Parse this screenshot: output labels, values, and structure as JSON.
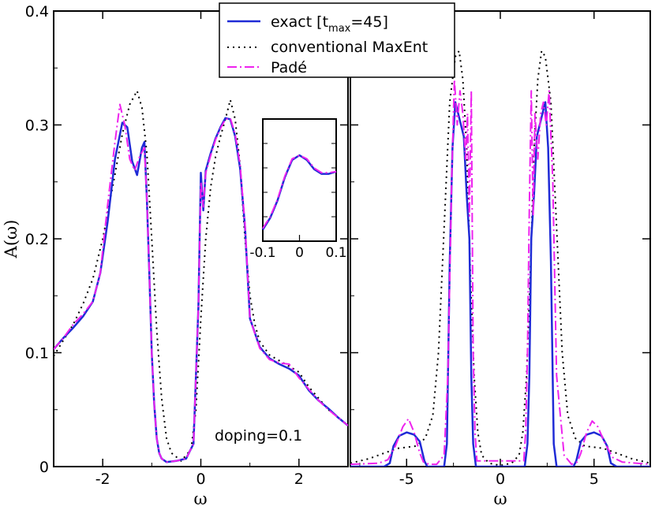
{
  "chart_data": {
    "type": "line",
    "ylabel": "A(ω)",
    "legend": {
      "placement": "top-center",
      "entries": [
        {
          "label_main": "exact [t",
          "label_sub": "max",
          "label_tail": "=45]",
          "style": "solid",
          "color": "#1f2bd6"
        },
        {
          "label": "conventional MaxEnt",
          "style": "dotted",
          "color": "#000000"
        },
        {
          "label": "Padé",
          "style": "dash-dot",
          "color": "#ee22ee"
        }
      ]
    },
    "panels": [
      {
        "name": "left",
        "xlabel": "ω",
        "xlim": [
          -3,
          3
        ],
        "ylim": [
          0,
          0.4
        ],
        "xticks": [
          -2,
          0,
          2
        ],
        "xtick_labels": [
          "-2",
          "0",
          "2"
        ],
        "yticks": [
          0,
          0.1,
          0.2,
          0.3,
          0.4
        ],
        "ytick_labels": [
          "0",
          "0.1",
          "0.2",
          "0.3",
          "0.4"
        ],
        "annotation": "doping=0.1",
        "series": [
          {
            "key": "exact",
            "x": [
              -3,
              -2.8,
              -2.6,
              -2.4,
              -2.2,
              -2.05,
              -1.9,
              -1.75,
              -1.6,
              -1.5,
              -1.4,
              -1.3,
              -1.2,
              -1.15,
              -1.1,
              -1.05,
              -1.0,
              -0.95,
              -0.9,
              -0.85,
              -0.8,
              -0.7,
              -0.5,
              -0.3,
              -0.15,
              -0.05,
              0.0,
              0.05,
              0.1,
              0.2,
              0.3,
              0.4,
              0.5,
              0.6,
              0.7,
              0.8,
              0.9,
              1.0,
              1.2,
              1.4,
              1.6,
              1.8,
              2.0,
              2.2,
              2.4,
              2.6,
              2.8,
              3.0
            ],
            "y": [
              0.103,
              0.113,
              0.122,
              0.132,
              0.145,
              0.17,
              0.215,
              0.27,
              0.302,
              0.298,
              0.268,
              0.256,
              0.28,
              0.285,
              0.235,
              0.17,
              0.1,
              0.055,
              0.025,
              0.012,
              0.007,
              0.004,
              0.005,
              0.007,
              0.02,
              0.14,
              0.258,
              0.225,
              0.26,
              0.275,
              0.288,
              0.298,
              0.306,
              0.305,
              0.29,
              0.262,
              0.21,
              0.13,
              0.105,
              0.095,
              0.09,
              0.086,
              0.08,
              0.067,
              0.058,
              0.051,
              0.043,
              0.036
            ]
          },
          {
            "key": "maxent",
            "x": [
              -3,
              -2.8,
              -2.6,
              -2.4,
              -2.2,
              -2.0,
              -1.8,
              -1.6,
              -1.45,
              -1.3,
              -1.2,
              -1.1,
              -1.0,
              -0.9,
              -0.8,
              -0.7,
              -0.6,
              -0.4,
              -0.2,
              -0.1,
              0.0,
              0.1,
              0.2,
              0.3,
              0.4,
              0.5,
              0.6,
              0.7,
              0.8,
              0.9,
              1.0,
              1.1,
              1.2,
              1.4,
              1.6,
              1.8,
              2.0,
              2.2,
              2.4,
              2.6,
              2.8,
              3.0
            ],
            "y": [
              0.097,
              0.111,
              0.125,
              0.143,
              0.165,
              0.2,
              0.245,
              0.292,
              0.318,
              0.33,
              0.315,
              0.275,
              0.2,
              0.12,
              0.06,
              0.025,
              0.012,
              0.005,
              0.015,
              0.05,
              0.13,
              0.2,
              0.245,
              0.272,
              0.29,
              0.305,
              0.322,
              0.305,
              0.265,
              0.2,
              0.15,
              0.125,
              0.11,
              0.098,
              0.093,
              0.088,
              0.083,
              0.07,
              0.06,
              0.05,
              0.043,
              0.036
            ]
          },
          {
            "key": "pade",
            "x": [
              -3,
              -2.8,
              -2.6,
              -2.4,
              -2.2,
              -2.05,
              -1.9,
              -1.75,
              -1.65,
              -1.55,
              -1.45,
              -1.35,
              -1.25,
              -1.15,
              -1.1,
              -1.05,
              -1.0,
              -0.95,
              -0.9,
              -0.85,
              -0.8,
              -0.7,
              -0.5,
              -0.3,
              -0.15,
              -0.05,
              0.0,
              0.05,
              0.1,
              0.2,
              0.3,
              0.4,
              0.5,
              0.6,
              0.7,
              0.8,
              0.9,
              1.0,
              1.2,
              1.4,
              1.6,
              1.8,
              2.0,
              2.2,
              2.4,
              2.6,
              2.8,
              3.0
            ],
            "y": [
              0.103,
              0.113,
              0.125,
              0.134,
              0.145,
              0.17,
              0.23,
              0.285,
              0.318,
              0.3,
              0.27,
              0.26,
              0.272,
              0.28,
              0.235,
              0.17,
              0.1,
              0.055,
              0.025,
              0.012,
              0.007,
              0.004,
              0.005,
              0.007,
              0.02,
              0.14,
              0.25,
              0.228,
              0.258,
              0.273,
              0.287,
              0.297,
              0.305,
              0.306,
              0.292,
              0.265,
              0.212,
              0.13,
              0.104,
              0.094,
              0.091,
              0.09,
              0.078,
              0.068,
              0.058,
              0.05,
              0.043,
              0.036
            ]
          }
        ]
      },
      {
        "name": "right",
        "xlabel": "ω",
        "xlim": [
          -8,
          8
        ],
        "ylim": [
          0,
          0.4
        ],
        "xticks": [
          -5,
          0,
          5
        ],
        "xtick_labels": [
          "-5",
          "0",
          "5"
        ],
        "yticks": [
          0,
          0.1,
          0.2,
          0.3,
          0.4
        ],
        "series": [
          {
            "key": "exact",
            "x": [
              -8,
              -6.2,
              -5.9,
              -5.7,
              -5.4,
              -5.0,
              -4.6,
              -4.3,
              -4.05,
              -3.9,
              -3.4,
              -3.0,
              -2.85,
              -2.7,
              -2.55,
              -2.4,
              -2.25,
              -2.1,
              -1.95,
              -1.8,
              -1.65,
              -1.55,
              -1.45,
              -1.3,
              1.3,
              1.45,
              1.55,
              1.65,
              1.8,
              1.95,
              2.1,
              2.25,
              2.4,
              2.55,
              2.7,
              2.85,
              3.0,
              3.4,
              3.9,
              4.05,
              4.3,
              4.6,
              5.0,
              5.4,
              5.7,
              5.9,
              6.2,
              8
            ],
            "y": [
              0,
              0,
              0.003,
              0.018,
              0.027,
              0.03,
              0.028,
              0.022,
              0.005,
              0,
              0,
              0,
              0.02,
              0.18,
              0.28,
              0.32,
              0.31,
              0.3,
              0.29,
              0.24,
              0.2,
              0.08,
              0.02,
              0,
              0,
              0.02,
              0.08,
              0.2,
              0.24,
              0.29,
              0.3,
              0.31,
              0.32,
              0.28,
              0.18,
              0.02,
              0,
              0,
              0,
              0.005,
              0.022,
              0.028,
              0.03,
              0.027,
              0.018,
              0.003,
              0,
              0
            ]
          },
          {
            "key": "maxent",
            "x": [
              -8,
              -7,
              -6,
              -5.5,
              -5,
              -4.5,
              -4,
              -3.6,
              -3.3,
              -3.0,
              -2.7,
              -2.4,
              -2.2,
              -2.0,
              -1.8,
              -1.6,
              -1.4,
              -1.2,
              -1.0,
              -0.6,
              0,
              0.6,
              1.0,
              1.2,
              1.4,
              1.6,
              1.8,
              2.0,
              2.2,
              2.4,
              2.7,
              3.0,
              3.3,
              3.6,
              4,
              4.5,
              5,
              5.5,
              6,
              7,
              8
            ],
            "y": [
              0.003,
              0.007,
              0.013,
              0.016,
              0.017,
              0.018,
              0.025,
              0.045,
              0.1,
              0.21,
              0.32,
              0.36,
              0.365,
              0.34,
              0.28,
              0.17,
              0.08,
              0.03,
              0.01,
              0.003,
              0.001,
              0.003,
              0.01,
              0.03,
              0.08,
              0.17,
              0.28,
              0.34,
              0.365,
              0.36,
              0.32,
              0.21,
              0.1,
              0.045,
              0.025,
              0.018,
              0.017,
              0.016,
              0.013,
              0.007,
              0.003
            ]
          },
          {
            "key": "pade",
            "x": [
              -8,
              -6.5,
              -6.0,
              -5.6,
              -5.2,
              -4.9,
              -4.6,
              -4.3,
              -4.1,
              -3.8,
              -3.4,
              -3.0,
              -2.8,
              -2.6,
              -2.45,
              -2.3,
              -2.15,
              -2.0,
              -1.85,
              -1.75,
              -1.65,
              -1.55,
              -1.45,
              -1.35,
              -1.25,
              1.25,
              1.35,
              1.45,
              1.55,
              1.65,
              1.75,
              1.85,
              2.0,
              2.15,
              2.3,
              2.45,
              2.6,
              2.8,
              3.0,
              3.4,
              3.8,
              4.1,
              4.3,
              4.6,
              4.9,
              5.2,
              5.6,
              6.0,
              6.5,
              8
            ],
            "y": [
              0.002,
              0.003,
              0.006,
              0.018,
              0.035,
              0.042,
              0.03,
              0.012,
              0.004,
              0.002,
              0.002,
              0.01,
              0.08,
              0.25,
              0.34,
              0.3,
              0.33,
              0.31,
              0.27,
              0.31,
              0.22,
              0.33,
              0.1,
              0.03,
              0.005,
              0.005,
              0.03,
              0.1,
              0.23,
              0.33,
              0.22,
              0.31,
              0.27,
              0.31,
              0.32,
              0.3,
              0.33,
              0.25,
              0.08,
              0.01,
              0.002,
              0.004,
              0.012,
              0.03,
              0.04,
              0.035,
              0.02,
              0.008,
              0.004,
              0.002
            ]
          }
        ]
      },
      {
        "name": "inset",
        "xlim": [
          -0.1,
          0.1
        ],
        "xticks": [
          -0.1,
          0,
          0.1
        ],
        "xtick_labels": [
          "-0.1",
          "0",
          "0.1"
        ],
        "series": [
          {
            "key": "exact",
            "x": [
              -0.1,
              -0.08,
              -0.06,
              -0.04,
              -0.02,
              0.0,
              0.02,
              0.04,
              0.06,
              0.08,
              0.1
            ],
            "y": [
              0.1,
              0.2,
              0.35,
              0.55,
              0.7,
              0.74,
              0.7,
              0.62,
              0.58,
              0.58,
              0.6
            ]
          },
          {
            "key": "pade",
            "x": [
              -0.1,
              -0.08,
              -0.06,
              -0.04,
              -0.02,
              0.0,
              0.02,
              0.04,
              0.06,
              0.08,
              0.1
            ],
            "y": [
              0.11,
              0.21,
              0.36,
              0.56,
              0.71,
              0.74,
              0.71,
              0.63,
              0.59,
              0.59,
              0.6
            ]
          }
        ]
      }
    ]
  }
}
